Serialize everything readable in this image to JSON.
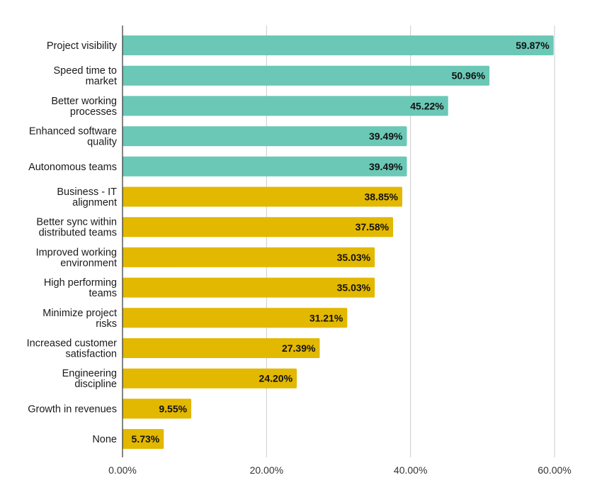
{
  "chart_data": {
    "type": "bar",
    "orientation": "horizontal",
    "categories": [
      "Project visibility",
      "Speed time to market",
      "Better working processes",
      "Enhanced software quality",
      "Autonomous teams",
      "Business - IT alignment",
      "Better sync within distributed teams",
      "Improved working environment",
      "High performing teams",
      "Minimize project risks",
      "Increased customer satisfaction",
      "Engineering discipline",
      "Growth in revenues",
      "None"
    ],
    "category_label_lines": [
      [
        "Project visibility"
      ],
      [
        "Speed time to",
        "market"
      ],
      [
        "Better working",
        "processes"
      ],
      [
        "Enhanced software",
        "quality"
      ],
      [
        "Autonomous teams"
      ],
      [
        "Business - IT",
        "alignment"
      ],
      [
        "Better sync within",
        "distributed teams"
      ],
      [
        "Improved working",
        "environment"
      ],
      [
        "High performing",
        "teams"
      ],
      [
        "Minimize project",
        "risks"
      ],
      [
        "Increased customer",
        "satisfaction"
      ],
      [
        "Engineering",
        "discipline"
      ],
      [
        "Growth in revenues"
      ],
      [
        "None"
      ]
    ],
    "values": [
      59.87,
      50.96,
      45.22,
      39.49,
      39.49,
      38.85,
      37.58,
      35.03,
      35.03,
      31.21,
      27.39,
      24.2,
      9.55,
      5.73
    ],
    "data_labels": [
      "59.87%",
      "50.96%",
      "45.22%",
      "39.49%",
      "39.49%",
      "38.85%",
      "37.58%",
      "35.03%",
      "35.03%",
      "31.21%",
      "27.39%",
      "24.20%",
      "9.55%",
      "5.73%"
    ],
    "highlight_count": 5,
    "colors": {
      "highlight": "#6bc8b6",
      "default": "#e2b800",
      "grid": "#cccccc",
      "axis": "#333333"
    },
    "xlim": [
      0,
      60
    ],
    "xticks": [
      0,
      20,
      40,
      60
    ],
    "xtick_labels": [
      "0.00%",
      "20.00%",
      "40.00%",
      "60.00%"
    ],
    "grid": true,
    "legend": "none",
    "title": "",
    "xlabel": "",
    "ylabel": ""
  }
}
